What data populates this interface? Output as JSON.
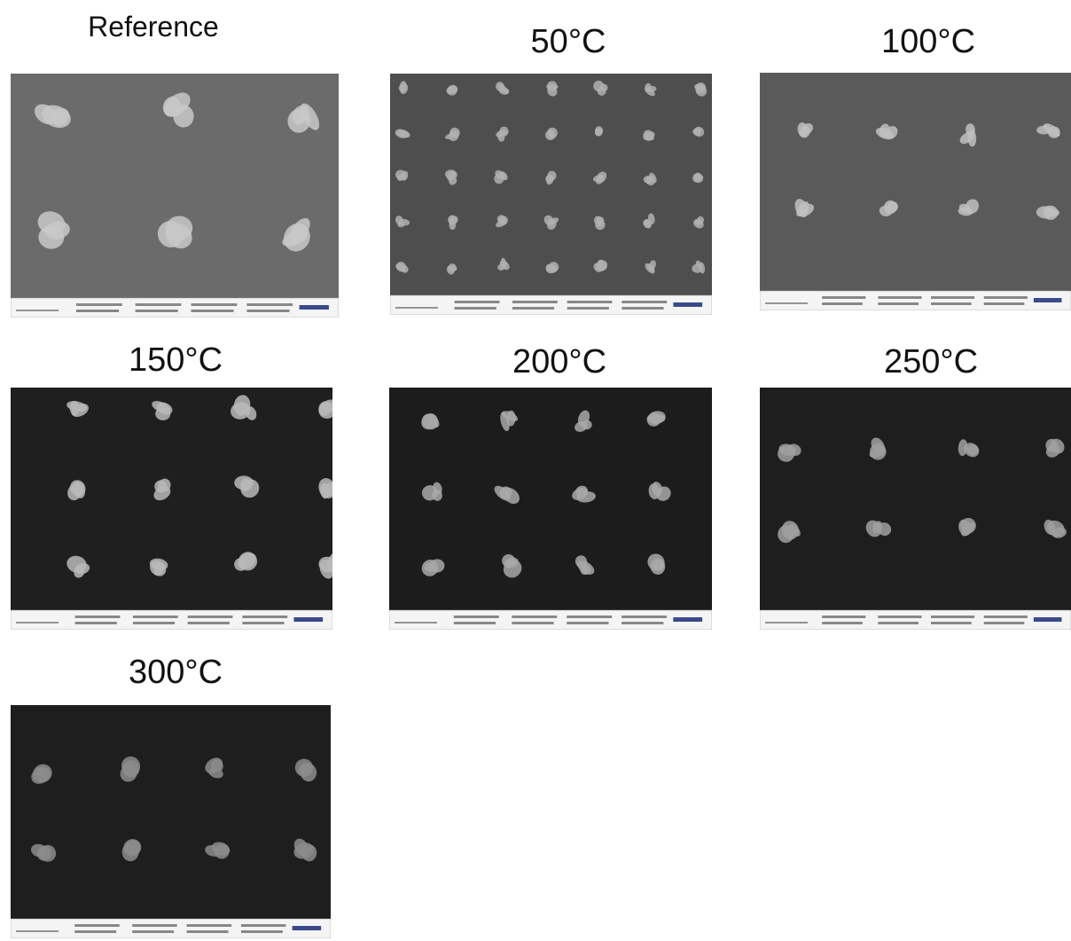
{
  "panels": [
    {
      "label": "Reference"
    },
    {
      "label": "50°C"
    },
    {
      "label": "100°C"
    },
    {
      "label": "150°C"
    },
    {
      "label": "200°C"
    },
    {
      "label": "250°C"
    },
    {
      "label": "300°C"
    }
  ]
}
